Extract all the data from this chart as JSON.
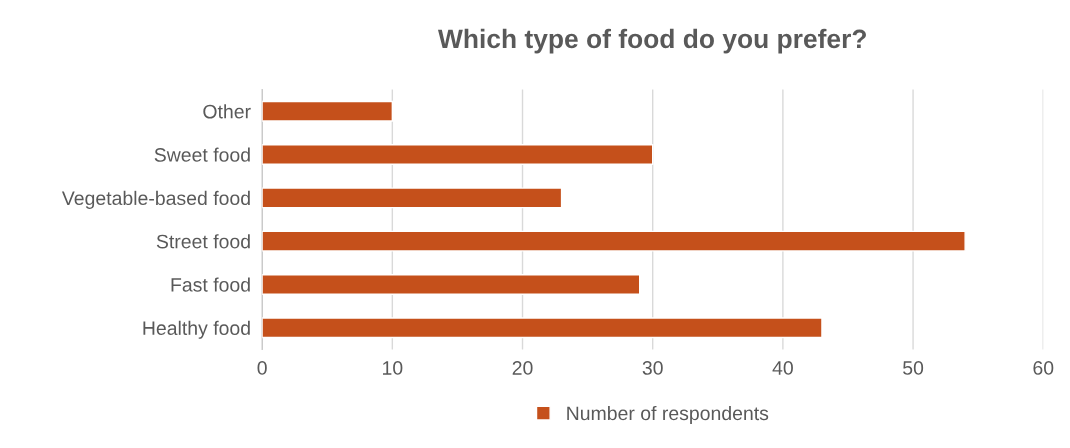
{
  "chart_data": {
    "type": "bar",
    "orientation": "horizontal",
    "title": "Which type of food do you prefer?",
    "categories": [
      "Other",
      "Sweet food",
      "Vegetable-based food",
      "Street food",
      "Fast food",
      "Healthy food"
    ],
    "series": [
      {
        "name": "Number of respondents",
        "color": "#c5501b",
        "values": [
          10,
          30,
          23,
          54,
          29,
          43
        ]
      }
    ],
    "xlim": [
      0,
      60
    ],
    "xticks": [
      0,
      10,
      20,
      30,
      40,
      50,
      60
    ],
    "grid": "x",
    "legend": "bottom"
  }
}
